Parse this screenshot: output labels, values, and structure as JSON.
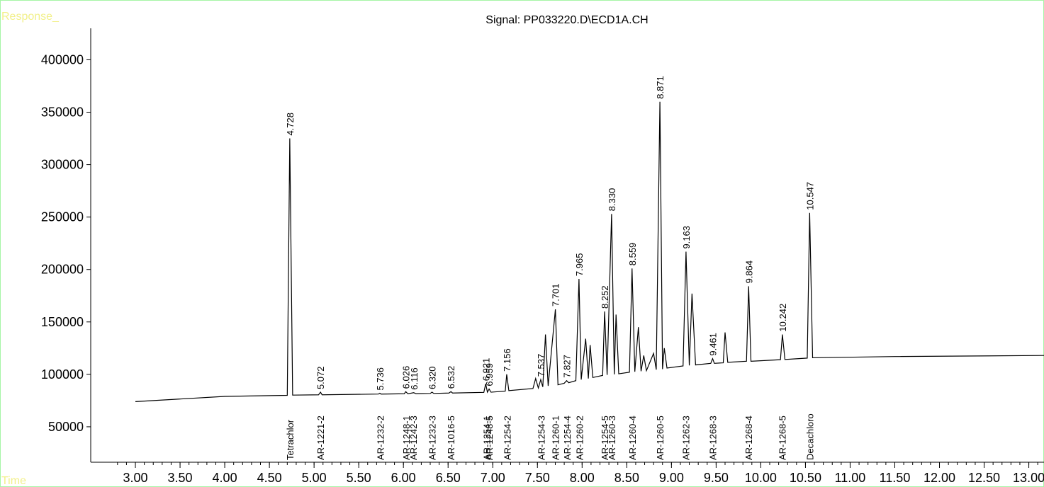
{
  "chart_data": {
    "type": "line",
    "title": "Signal: PP033220.D\\ECD1A.CH",
    "ylabel": "Response_",
    "xlabel": "Time",
    "xlim": [
      2.5,
      13.17
    ],
    "ylim": [
      16200,
      430000
    ],
    "xticks": [
      {
        "value": 3,
        "label": "3.00"
      },
      {
        "value": 3.5,
        "label": "3.50"
      },
      {
        "value": 4,
        "label": "4.00"
      },
      {
        "value": 4.5,
        "label": "4.50"
      },
      {
        "value": 5,
        "label": "5.00"
      },
      {
        "value": 5.5,
        "label": "5.50"
      },
      {
        "value": 6,
        "label": "6.00"
      },
      {
        "value": 6.5,
        "label": "6.50"
      },
      {
        "value": 7,
        "label": "7.00"
      },
      {
        "value": 7.5,
        "label": "7.50"
      },
      {
        "value": 8,
        "label": "8.00"
      },
      {
        "value": 8.5,
        "label": "8.50"
      },
      {
        "value": 9,
        "label": "9.00"
      },
      {
        "value": 9.5,
        "label": "9.50"
      },
      {
        "value": 10,
        "label": "10.00"
      },
      {
        "value": 10.5,
        "label": "10.50"
      },
      {
        "value": 11,
        "label": "11.00"
      },
      {
        "value": 11.5,
        "label": "11.50"
      },
      {
        "value": 12,
        "label": "12.00"
      },
      {
        "value": 12.5,
        "label": "12.50"
      },
      {
        "value": 13,
        "label": "13.00"
      }
    ],
    "yticks": [
      50000,
      100000,
      150000,
      200000,
      250000,
      300000,
      350000,
      400000
    ],
    "series": [
      {
        "name": "ECD1A",
        "color": "#000000",
        "x": [
          3.0,
          4.0,
          4.7,
          4.728,
          4.76,
          5.05,
          5.072,
          5.09,
          5.72,
          5.736,
          5.75,
          6.01,
          6.026,
          6.05,
          6.116,
          6.14,
          6.3,
          6.32,
          6.34,
          6.51,
          6.532,
          6.55,
          6.9,
          6.921,
          6.94,
          6.959,
          6.98,
          7.14,
          7.156,
          7.18,
          7.45,
          7.48,
          7.51,
          7.537,
          7.56,
          7.59,
          7.62,
          7.701,
          7.73,
          7.8,
          7.827,
          7.85,
          7.93,
          7.965,
          7.99,
          8.04,
          8.07,
          8.09,
          8.12,
          8.23,
          8.252,
          8.28,
          8.33,
          8.36,
          8.38,
          8.41,
          8.53,
          8.559,
          8.59,
          8.63,
          8.66,
          8.69,
          8.72,
          8.8,
          8.83,
          8.871,
          8.9,
          8.92,
          8.95,
          9.13,
          9.163,
          9.2,
          9.23,
          9.27,
          9.44,
          9.461,
          9.48,
          9.58,
          9.6,
          9.63,
          9.84,
          9.864,
          9.89,
          10.22,
          10.242,
          10.27,
          10.52,
          10.547,
          10.58,
          11.5,
          13.17
        ],
        "values": [
          74000,
          79000,
          80000,
          325000,
          80200,
          80500,
          83000,
          80500,
          81200,
          82000,
          81200,
          81500,
          83500,
          81500,
          82500,
          81600,
          81800,
          83000,
          81800,
          82200,
          83500,
          82200,
          82800,
          91000,
          83000,
          86000,
          83000,
          84000,
          100000,
          84500,
          86500,
          96000,
          87000,
          95000,
          88000,
          138000,
          89000,
          162000,
          90000,
          91500,
          94000,
          92000,
          94000,
          191000,
          95000,
          134000,
          96000,
          128000,
          97000,
          99000,
          160000,
          99500,
          253000,
          100000,
          157000,
          100500,
          102000,
          201000,
          102500,
          145000,
          103000,
          118000,
          103500,
          120000,
          104500,
          360000,
          105000,
          125000,
          106000,
          108000,
          217000,
          108500,
          177000,
          109000,
          110500,
          115000,
          110500,
          111000,
          140000,
          111500,
          112500,
          184000,
          112500,
          114000,
          138000,
          114200,
          115500,
          254000,
          115800,
          117000,
          118000
        ]
      }
    ],
    "peaks": [
      {
        "rt": 4.728,
        "label": "4.728",
        "height": 325000
      },
      {
        "rt": 5.072,
        "label": "5.072",
        "height": 83000
      },
      {
        "rt": 5.736,
        "label": "5.736",
        "height": 82000
      },
      {
        "rt": 6.026,
        "label": "6.026",
        "height": 83500
      },
      {
        "rt": 6.116,
        "label": "6.116",
        "height": 82500
      },
      {
        "rt": 6.32,
        "label": "6.320",
        "height": 83000
      },
      {
        "rt": 6.532,
        "label": "6.532",
        "height": 83500
      },
      {
        "rt": 6.921,
        "label": "6.921",
        "height": 91000
      },
      {
        "rt": 6.959,
        "label": "6.959",
        "height": 86000
      },
      {
        "rt": 7.156,
        "label": "7.156",
        "height": 100000
      },
      {
        "rt": 7.537,
        "label": "7.537",
        "height": 95000
      },
      {
        "rt": 7.701,
        "label": "7.701",
        "height": 162000
      },
      {
        "rt": 7.827,
        "label": "7.827",
        "height": 94000
      },
      {
        "rt": 7.965,
        "label": "7.965",
        "height": 191000
      },
      {
        "rt": 8.252,
        "label": "8.252",
        "height": 160000
      },
      {
        "rt": 8.33,
        "label": "8.330",
        "height": 253000
      },
      {
        "rt": 8.559,
        "label": "8.559",
        "height": 201000
      },
      {
        "rt": 8.871,
        "label": "8.871",
        "height": 360000
      },
      {
        "rt": 9.163,
        "label": "9.163",
        "height": 217000
      },
      {
        "rt": 9.461,
        "label": "9.461",
        "height": 115000
      },
      {
        "rt": 9.864,
        "label": "9.864",
        "height": 184000
      },
      {
        "rt": 10.242,
        "label": "10.242",
        "height": 138000
      },
      {
        "rt": 10.547,
        "label": "10.547",
        "height": 254000
      }
    ],
    "compounds": [
      {
        "name": "Tetrachlor",
        "rt": 4.73
      },
      {
        "name": "AR-1221-2",
        "rt": 5.07
      },
      {
        "name": "AR-1232-2",
        "rt": 5.74
      },
      {
        "name": "AR-1248-1",
        "rt": 6.03
      },
      {
        "name": "AR-1242-3",
        "rt": 6.11
      },
      {
        "name": "AR-1232-3",
        "rt": 6.32
      },
      {
        "name": "AR-1016-5",
        "rt": 6.53
      },
      {
        "name": "AR-1254-1",
        "rt": 6.93
      },
      {
        "name": "AR-1248-5",
        "rt": 6.96
      },
      {
        "name": "AR-1254-2",
        "rt": 7.16
      },
      {
        "name": "AR-1254-3",
        "rt": 7.54
      },
      {
        "name": "AR-1260-1",
        "rt": 7.7
      },
      {
        "name": "AR-1254-4",
        "rt": 7.83
      },
      {
        "name": "AR-1260-2",
        "rt": 7.97
      },
      {
        "name": "AR-1254-5",
        "rt": 8.25
      },
      {
        "name": "AR-1260-3",
        "rt": 8.33
      },
      {
        "name": "AR-1260-4",
        "rt": 8.56
      },
      {
        "name": "AR-1260-5",
        "rt": 8.87
      },
      {
        "name": "AR-1262-3",
        "rt": 9.16
      },
      {
        "name": "AR-1268-3",
        "rt": 9.46
      },
      {
        "name": "AR-1268-4",
        "rt": 9.86
      },
      {
        "name": "AR-1268-5",
        "rt": 10.24
      },
      {
        "name": "Decachloro",
        "rt": 10.55
      }
    ]
  }
}
